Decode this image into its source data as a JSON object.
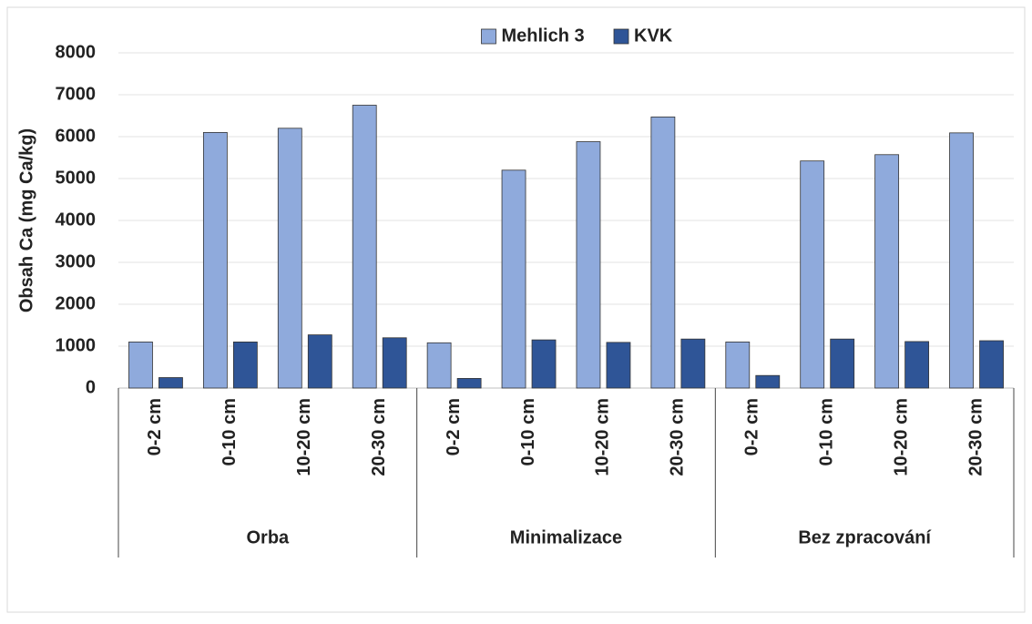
{
  "chart_data": {
    "type": "bar",
    "ylabel": "Obsah Ca (mg Ca/kg)",
    "categories": [
      "0-2 cm",
      "0-10 cm",
      "10-20 cm",
      "20-30 cm",
      "0-2 cm",
      "0-10 cm",
      "10-20 cm",
      "20-30 cm",
      "0-2 cm",
      "0-10 cm",
      "10-20 cm",
      "20-30 cm"
    ],
    "groups": [
      {
        "name": "Orba",
        "size": 4
      },
      {
        "name": "Minimalizace",
        "size": 4
      },
      {
        "name": "Bez zpracování",
        "size": 4
      }
    ],
    "series": [
      {
        "name": "Mehlich 3",
        "color": "#8faadc",
        "values": [
          1100,
          6100,
          6200,
          6750,
          1080,
          5200,
          5880,
          6470,
          1100,
          5420,
          5570,
          6090
        ]
      },
      {
        "name": "KVK",
        "color": "#2f5597",
        "values": [
          250,
          1100,
          1270,
          1200,
          230,
          1150,
          1090,
          1170,
          300,
          1170,
          1110,
          1130
        ]
      }
    ],
    "ylim": [
      0,
      8000
    ],
    "yticks": [
      0,
      1000,
      2000,
      3000,
      4000,
      5000,
      6000,
      7000,
      8000
    ],
    "grid": true,
    "legend": "top"
  }
}
